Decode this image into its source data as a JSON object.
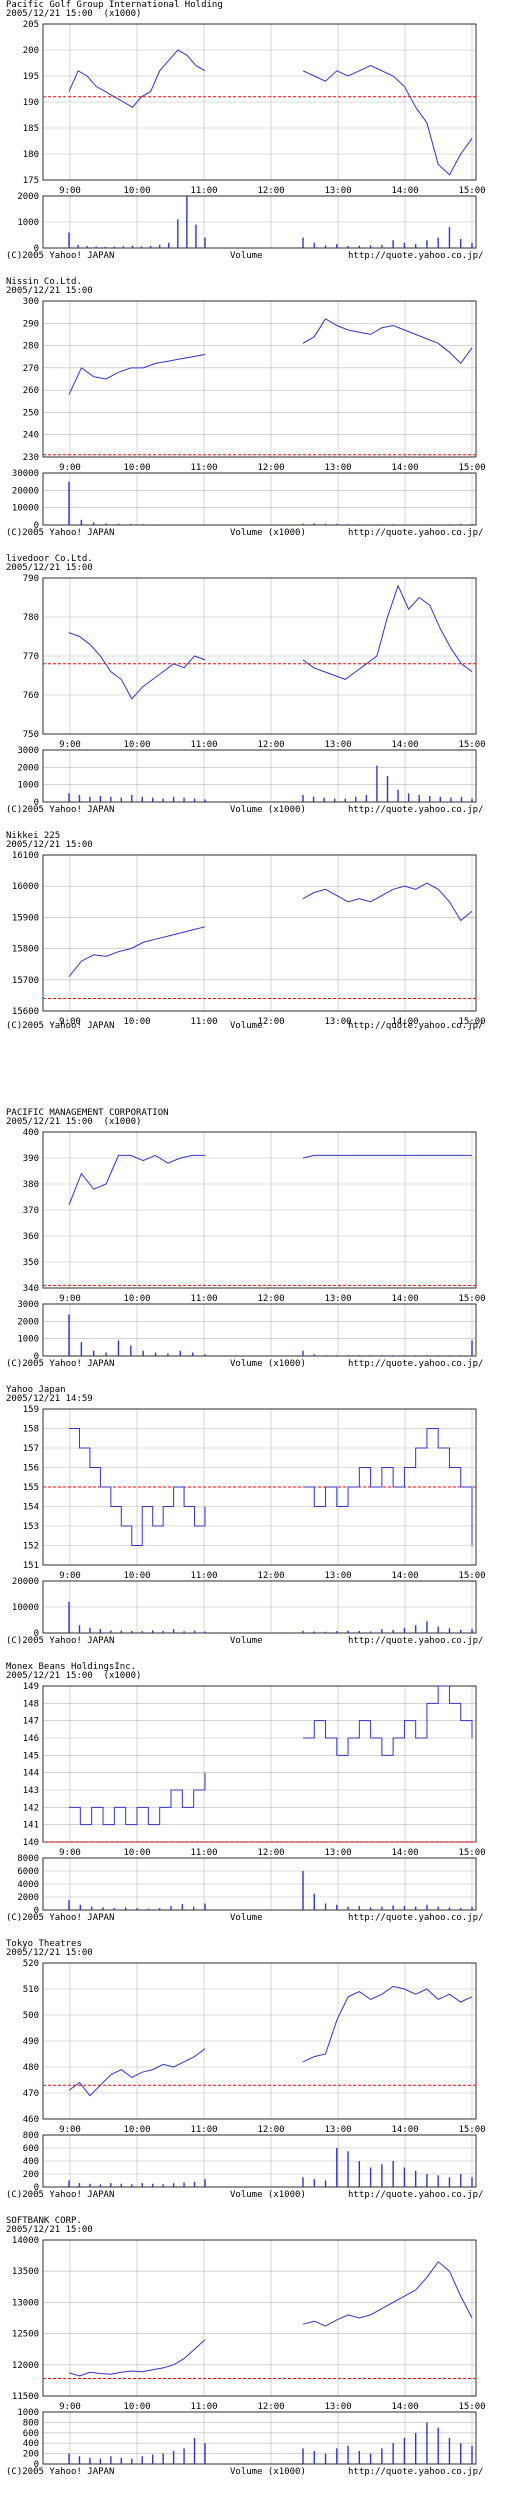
{
  "footer": {
    "copyright": "(C)2005 Yahoo! JAPAN",
    "volume_label": "Volume",
    "volume_label_k": "Volume (x1000)",
    "url": "http://quote.yahoo.co.jp/"
  },
  "colors": {
    "price_line": "#3333cc",
    "volume_bar": "#3333cc",
    "ref_line": "#ff0000",
    "grid": "#bbbbbb",
    "axis": "#000000"
  },
  "chart_data": [
    {
      "type": "line",
      "name": "Pacific Golf Group International Holding",
      "timestamp": "2005/12/21 15:00",
      "unit": "(x1000)",
      "ylim": [
        175,
        205
      ],
      "yticks": [
        175,
        180,
        185,
        190,
        195,
        200,
        205
      ],
      "ref": 191,
      "xticks": [
        "9:00",
        "10:00",
        "11:00",
        "12:00",
        "13:00",
        "14:00",
        "15:00"
      ],
      "morning": [
        192,
        196,
        195,
        193,
        192,
        191,
        190,
        189,
        191,
        192,
        196,
        198,
        200,
        199,
        197,
        196
      ],
      "afternoon": [
        196,
        195,
        194,
        196,
        195,
        196,
        197,
        196,
        195,
        193,
        189,
        186,
        178,
        176,
        180,
        183
      ],
      "vol_ylim": [
        0,
        2000
      ],
      "vol_yticks": [
        0,
        1000,
        2000
      ],
      "vol_label_key": "volume_label",
      "vol_morning": [
        600,
        120,
        80,
        60,
        40,
        50,
        70,
        90,
        60,
        80,
        120,
        200,
        1100,
        2000,
        900,
        400
      ],
      "vol_afternoon": [
        400,
        200,
        100,
        150,
        80,
        90,
        100,
        120,
        300,
        200,
        150,
        300,
        400,
        800,
        350,
        200
      ]
    },
    {
      "type": "line",
      "name": "Nissin Co.Ltd.",
      "timestamp": "2005/12/21 15:00",
      "unit": "",
      "ylim": [
        230,
        300
      ],
      "yticks": [
        230,
        240,
        250,
        260,
        270,
        280,
        290,
        300
      ],
      "ref": 231,
      "xticks": [
        "9:00",
        "10:00",
        "11:00",
        "12:00",
        "13:00",
        "14:00",
        "15:00"
      ],
      "morning": [
        258,
        270,
        266,
        265,
        268,
        270,
        270,
        272,
        273,
        274,
        275,
        276
      ],
      "afternoon": [
        281,
        284,
        292,
        289,
        287,
        286,
        285,
        288,
        289,
        287,
        285,
        283,
        281,
        277,
        272,
        279
      ],
      "vol_ylim": [
        0,
        30000
      ],
      "vol_yticks": [
        0,
        10000,
        20000,
        30000
      ],
      "vol_label_key": "volume_label_k",
      "vol_morning": [
        25000,
        3000,
        1500,
        900,
        700,
        600,
        500,
        400,
        300,
        300,
        200,
        200
      ],
      "vol_afternoon": [
        800,
        900,
        700,
        600,
        500,
        400,
        300,
        400,
        500,
        300,
        300,
        400,
        300,
        500,
        700,
        600
      ]
    },
    {
      "type": "line",
      "name": "livedoor Co.Ltd.",
      "timestamp": "2005/12/21 15:00",
      "unit": "",
      "ylim": [
        750,
        790
      ],
      "yticks": [
        750,
        760,
        770,
        780,
        790
      ],
      "ref": 768,
      "xticks": [
        "9:00",
        "10:00",
        "11:00",
        "12:00",
        "13:00",
        "14:00",
        "15:00"
      ],
      "morning": [
        776,
        775,
        773,
        770,
        766,
        764,
        759,
        762,
        764,
        766,
        768,
        767,
        770,
        769
      ],
      "afternoon": [
        769,
        767,
        766,
        765,
        764,
        766,
        768,
        770,
        780,
        788,
        782,
        785,
        783,
        777,
        772,
        768,
        766
      ],
      "vol_ylim": [
        0,
        3000
      ],
      "vol_yticks": [
        0,
        1000,
        2000,
        3000
      ],
      "vol_label_key": "volume_label_k",
      "vol_morning": [
        500,
        400,
        300,
        350,
        300,
        250,
        400,
        300,
        250,
        200,
        300,
        250,
        200,
        150
      ],
      "vol_afternoon": [
        400,
        300,
        250,
        200,
        200,
        300,
        400,
        2100,
        1500,
        700,
        500,
        400,
        350,
        300,
        250,
        300,
        200
      ]
    },
    {
      "type": "line",
      "name": "Nikkei 225",
      "timestamp": "2005/12/21 15:00",
      "unit": "",
      "ylim": [
        15600,
        16100
      ],
      "yticks": [
        15600,
        15700,
        15800,
        15900,
        16000,
        16100
      ],
      "ref": 15640,
      "xticks": [
        "9:00",
        "10:00",
        "11:00",
        "12:00",
        "13:00",
        "14:00",
        "15:00"
      ],
      "morning": [
        15710,
        15760,
        15780,
        15775,
        15790,
        15800,
        15820,
        15830,
        15840,
        15850,
        15860,
        15870
      ],
      "afternoon": [
        15960,
        15980,
        15990,
        15970,
        15950,
        15960,
        15950,
        15970,
        15990,
        16000,
        15990,
        16010,
        15990,
        15950,
        15890,
        15920
      ],
      "vol_ylim": null,
      "vol_yticks": [],
      "vol_label_key": "volume_label",
      "vol_morning": [],
      "vol_afternoon": []
    },
    {
      "type": "line",
      "name": "PACIFIC MANAGEMENT CORPORATION",
      "timestamp": "2005/12/21 15:00",
      "unit": "(x1000)",
      "ylim": [
        340,
        400
      ],
      "yticks": [
        340,
        350,
        360,
        370,
        380,
        390,
        400
      ],
      "ref": 341,
      "xticks": [
        "9:00",
        "10:00",
        "11:00",
        "12:00",
        "13:00",
        "14:00",
        "15:00"
      ],
      "morning": [
        372,
        384,
        378,
        380,
        391,
        391,
        389,
        391,
        388,
        390,
        391,
        391
      ],
      "afternoon": [
        390,
        391,
        391,
        391,
        391,
        391,
        391,
        391,
        391,
        391,
        391,
        391,
        391,
        391,
        391,
        391
      ],
      "vol_ylim": [
        0,
        3000
      ],
      "vol_yticks": [
        0,
        1000,
        2000,
        3000
      ],
      "vol_label_key": "volume_label_k",
      "vol_morning": [
        2400,
        800,
        300,
        200,
        900,
        600,
        300,
        200,
        150,
        300,
        200,
        100
      ],
      "vol_afternoon": [
        300,
        100,
        50,
        50,
        50,
        50,
        50,
        50,
        50,
        50,
        50,
        50,
        50,
        50,
        50,
        900
      ],
      "mark_afternoon_flat": true
    },
    {
      "type": "step",
      "name": "Yahoo Japan",
      "timestamp": "2005/12/21 14:59",
      "unit": "",
      "ylim": [
        151,
        159
      ],
      "yticks": [
        151,
        152,
        153,
        154,
        155,
        156,
        157,
        158,
        159
      ],
      "ref": 155,
      "xticks": [
        "9:00",
        "10:00",
        "11:00",
        "12:00",
        "13:00",
        "14:00",
        "15:00"
      ],
      "morning": [
        158,
        157,
        156,
        155,
        154,
        153,
        152,
        154,
        153,
        154,
        155,
        154,
        153,
        154
      ],
      "afternoon": [
        155,
        154,
        155,
        154,
        155,
        156,
        155,
        156,
        155,
        156,
        157,
        158,
        157,
        156,
        155,
        152
      ],
      "vol_ylim": [
        0,
        20000
      ],
      "vol_yticks": [
        0,
        10000,
        20000
      ],
      "vol_label_key": "volume_label",
      "vol_morning": [
        12000,
        3000,
        2000,
        1500,
        1000,
        900,
        800,
        700,
        1000,
        800,
        1500,
        700,
        900,
        600
      ],
      "vol_afternoon": [
        800,
        600,
        500,
        700,
        900,
        800,
        600,
        1500,
        1200,
        2000,
        3000,
        4500,
        2500,
        1800,
        1200,
        1600
      ]
    },
    {
      "type": "step",
      "name": "Monex Beans HoldingsInc.",
      "timestamp": "2005/12/21 15:00",
      "unit": "(x1000)",
      "ylim": [
        140,
        149
      ],
      "yticks": [
        140,
        141,
        142,
        143,
        144,
        145,
        146,
        147,
        148,
        149
      ],
      "ref": 140,
      "xticks": [
        "9:00",
        "10:00",
        "11:00",
        "12:00",
        "13:00",
        "14:00",
        "15:00"
      ],
      "morning": [
        142,
        141,
        142,
        141,
        142,
        141,
        142,
        141,
        142,
        143,
        142,
        143,
        144
      ],
      "afternoon": [
        146,
        147,
        146,
        145,
        146,
        147,
        146,
        145,
        146,
        147,
        146,
        148,
        149,
        148,
        147,
        146
      ],
      "vol_ylim": [
        0,
        8000
      ],
      "vol_yticks": [
        0,
        2000,
        4000,
        6000,
        8000
      ],
      "vol_label_key": "volume_label",
      "vol_morning": [
        1500,
        800,
        500,
        400,
        300,
        400,
        300,
        200,
        300,
        600,
        900,
        500,
        1000
      ],
      "vol_afternoon": [
        6000,
        2500,
        1000,
        800,
        500,
        600,
        400,
        500,
        700,
        600,
        500,
        800,
        500,
        400,
        300,
        500
      ]
    },
    {
      "type": "line",
      "name": "Tokyo Theatres",
      "timestamp": "2005/12/21 15:00",
      "unit": "",
      "ylim": [
        460,
        520
      ],
      "yticks": [
        460,
        470,
        480,
        490,
        500,
        510,
        520
      ],
      "ref": 473,
      "xticks": [
        "9:00",
        "10:00",
        "11:00",
        "12:00",
        "13:00",
        "14:00",
        "15:00"
      ],
      "morning": [
        471,
        474,
        469,
        473,
        477,
        479,
        476,
        478,
        479,
        481,
        480,
        482,
        484,
        487
      ],
      "afternoon": [
        482,
        484,
        485,
        498,
        507,
        509,
        506,
        508,
        511,
        510,
        508,
        510,
        506,
        508,
        505,
        507
      ],
      "vol_ylim": [
        0,
        800
      ],
      "vol_yticks": [
        0,
        200,
        400,
        600,
        800
      ],
      "vol_label_key": "volume_label_k",
      "vol_morning": [
        100,
        60,
        50,
        40,
        60,
        50,
        40,
        60,
        50,
        40,
        60,
        70,
        80,
        120
      ],
      "vol_afternoon": [
        150,
        120,
        100,
        600,
        550,
        400,
        300,
        350,
        400,
        300,
        250,
        200,
        180,
        150,
        200,
        150
      ]
    },
    {
      "type": "line",
      "name": "SOFTBANK CORP.",
      "timestamp": "2005/12/21 15:00",
      "unit": "",
      "ylim": [
        11500,
        14000
      ],
      "yticks": [
        11500,
        12000,
        12500,
        13000,
        13500,
        14000
      ],
      "ref": 11780,
      "xticks": [
        "9:00",
        "10:00",
        "11:00",
        "12:00",
        "13:00",
        "14:00",
        "15:00"
      ],
      "morning": [
        11870,
        11820,
        11880,
        11860,
        11850,
        11880,
        11900,
        11890,
        11920,
        11950,
        12000,
        12100,
        12250,
        12400
      ],
      "afternoon": [
        12650,
        12700,
        12620,
        12720,
        12800,
        12750,
        12800,
        12900,
        13000,
        13100,
        13200,
        13400,
        13650,
        13500,
        13100,
        12750
      ],
      "vol_ylim": [
        0,
        1000
      ],
      "vol_yticks": [
        0,
        200,
        400,
        600,
        800,
        1000
      ],
      "vol_label_key": "volume_label_k",
      "vol_morning": [
        200,
        150,
        120,
        100,
        150,
        120,
        100,
        150,
        180,
        200,
        250,
        300,
        500,
        400
      ],
      "vol_afternoon": [
        300,
        250,
        200,
        300,
        350,
        250,
        200,
        300,
        400,
        500,
        600,
        800,
        700,
        500,
        400,
        350
      ]
    }
  ]
}
